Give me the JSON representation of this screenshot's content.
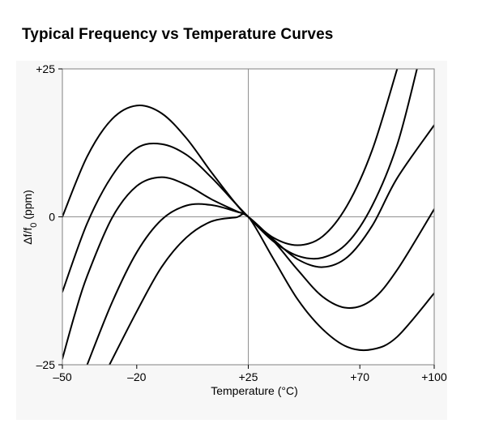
{
  "chart_data": {
    "type": "line",
    "title": "Typical Frequency vs Temperature Curves",
    "xlabel": "Temperature (°C)",
    "ylabel": {
      "prefix": "Δf/f",
      "subscript": "0",
      "suffix": " (ppm)"
    },
    "xlim": [
      -50,
      100
    ],
    "ylim": [
      -25,
      25
    ],
    "x_ticks": [
      {
        "value": -50,
        "label": "–50"
      },
      {
        "value": -20,
        "label": "–20"
      },
      {
        "value": 25,
        "label": "+25"
      },
      {
        "value": 70,
        "label": "+70"
      },
      {
        "value": 100,
        "label": "+100"
      }
    ],
    "y_ticks": [
      {
        "value": 25,
        "label": "+25"
      },
      {
        "value": 0,
        "label": "0"
      },
      {
        "value": -25,
        "label": "–25"
      }
    ],
    "grid": "center crosshair at x=+25, y=0",
    "legend": "none",
    "colors": {
      "curve": "#000000",
      "frame": "#808080",
      "crosshair": "#909090"
    },
    "series": [
      {
        "points": [
          [
            -50,
            0.0
          ],
          [
            -40,
            10.2
          ],
          [
            -30,
            16.5
          ],
          [
            -20,
            18.8
          ],
          [
            -10,
            17.5
          ],
          [
            0,
            13.3
          ],
          [
            10,
            7.6
          ],
          [
            20,
            2.2
          ],
          [
            25,
            0.0
          ],
          [
            35,
            -3.5
          ],
          [
            45,
            -4.8
          ],
          [
            55,
            -3.3
          ],
          [
            65,
            2.0
          ],
          [
            75,
            11.3
          ],
          [
            85,
            24.9
          ]
        ]
      },
      {
        "points": [
          [
            -50,
            -12.7
          ],
          [
            -40,
            -1.1
          ],
          [
            -30,
            6.9
          ],
          [
            -20,
            11.6
          ],
          [
            -10,
            12.3
          ],
          [
            0,
            10.5
          ],
          [
            10,
            6.7
          ],
          [
            20,
            2.2
          ],
          [
            25,
            0.0
          ],
          [
            35,
            -4.1
          ],
          [
            45,
            -6.6
          ],
          [
            55,
            -6.9
          ],
          [
            65,
            -4.4
          ],
          [
            75,
            1.9
          ],
          [
            85,
            12.1
          ],
          [
            93,
            24.9
          ]
        ]
      },
      {
        "points": [
          [
            -50,
            -24.0
          ],
          [
            -45,
            -16.5
          ],
          [
            -40,
            -10.0
          ],
          [
            -30,
            -0.2
          ],
          [
            -20,
            5.2
          ],
          [
            -10,
            6.7
          ],
          [
            0,
            5.4
          ],
          [
            10,
            3.0
          ],
          [
            20,
            1.0
          ],
          [
            25,
            0.0
          ],
          [
            35,
            -3.8
          ],
          [
            45,
            -7.2
          ],
          [
            55,
            -8.5
          ],
          [
            65,
            -6.8
          ],
          [
            75,
            -1.5
          ],
          [
            85,
            6.5
          ],
          [
            100,
            15.5
          ]
        ]
      },
      {
        "points": [
          [
            -40,
            -25.0
          ],
          [
            -30,
            -14.5
          ],
          [
            -20,
            -6.0
          ],
          [
            -10,
            -0.5
          ],
          [
            0,
            1.9
          ],
          [
            10,
            2.0
          ],
          [
            20,
            0.9
          ],
          [
            25,
            0.0
          ],
          [
            35,
            -4.0
          ],
          [
            45,
            -9.0
          ],
          [
            55,
            -13.5
          ],
          [
            65,
            -15.4
          ],
          [
            75,
            -14.0
          ],
          [
            85,
            -9.0
          ],
          [
            100,
            1.3
          ]
        ]
      },
      {
        "points": [
          [
            -31,
            -25.0
          ],
          [
            -20,
            -16.0
          ],
          [
            -10,
            -8.5
          ],
          [
            0,
            -3.5
          ],
          [
            10,
            -0.8
          ],
          [
            20,
            -0.1
          ],
          [
            25,
            0.0
          ],
          [
            35,
            -7.0
          ],
          [
            45,
            -14.0
          ],
          [
            55,
            -19.0
          ],
          [
            65,
            -22.0
          ],
          [
            75,
            -22.4
          ],
          [
            85,
            -20.3
          ],
          [
            100,
            -12.9
          ]
        ]
      }
    ]
  }
}
